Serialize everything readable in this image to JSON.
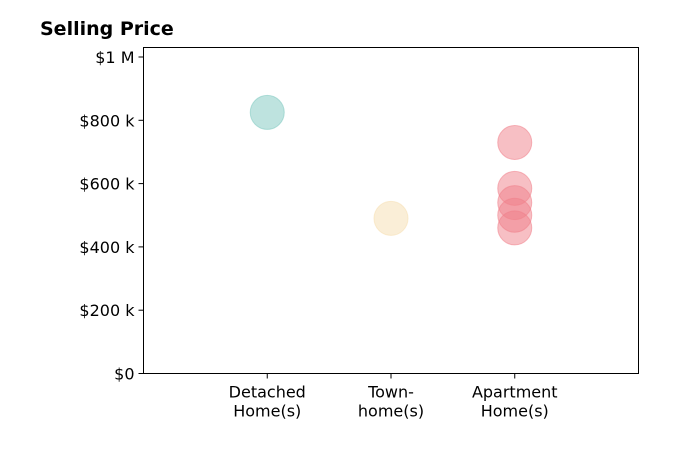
{
  "chart_data": {
    "type": "scatter",
    "title": "Selling Price",
    "xlabel": "",
    "ylabel": "",
    "categories": [
      [
        "Detached",
        "Home(s)"
      ],
      [
        "Town-",
        "home(s)"
      ],
      [
        "Apartment",
        "Home(s)"
      ]
    ],
    "x_range": [
      0,
      4
    ],
    "ylim": [
      0,
      1030000
    ],
    "y_ticks": [
      {
        "value": 0,
        "label": "$0"
      },
      {
        "value": 200000,
        "label": "$200 k"
      },
      {
        "value": 400000,
        "label": "$400 k"
      },
      {
        "value": 600000,
        "label": "$600 k"
      },
      {
        "value": 800000,
        "label": "$800 k"
      },
      {
        "value": 1000000,
        "label": "$1 M"
      }
    ],
    "grid": false,
    "series": [
      {
        "category_index": 0,
        "color": "#7ec8c0",
        "points": [
          825000
        ]
      },
      {
        "category_index": 1,
        "color": "#f5deb0",
        "points": [
          490000
        ]
      },
      {
        "category_index": 2,
        "color": "#f07f8a",
        "points": [
          730000,
          585000,
          540000,
          500000,
          460000
        ]
      }
    ]
  }
}
